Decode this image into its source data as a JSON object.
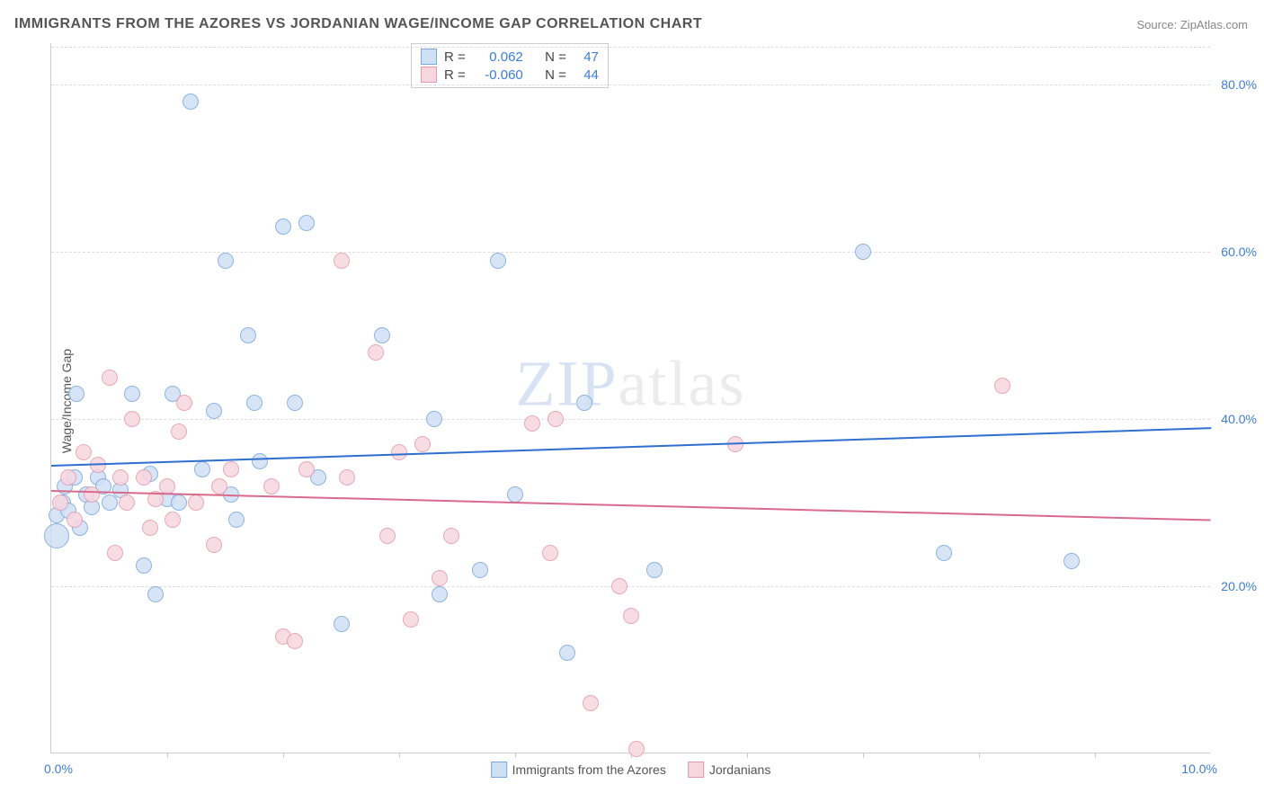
{
  "title": "IMMIGRANTS FROM THE AZORES VS JORDANIAN WAGE/INCOME GAP CORRELATION CHART",
  "source": "Source: ZipAtlas.com",
  "ylabel": "Wage/Income Gap",
  "watermark_a": "ZIP",
  "watermark_b": "atlas",
  "chart": {
    "type": "scatter",
    "xlim": [
      0,
      10
    ],
    "ylim": [
      0,
      85
    ],
    "x_ticks_minor": [
      1,
      2,
      3,
      4,
      5,
      6,
      7,
      8,
      9
    ],
    "x_tick_labels": {
      "left": "0.0%",
      "right": "10.0%"
    },
    "y_ticks": [
      20,
      40,
      60,
      80
    ],
    "y_tick_labels": [
      "20.0%",
      "40.0%",
      "60.0%",
      "80.0%"
    ],
    "background_color": "#ffffff",
    "grid_color": "#dddddd",
    "axis_color": "#cccccc",
    "tick_label_color": "#3b7dd8",
    "title_color": "#555555",
    "title_fontsize": 16,
    "label_fontsize": 14,
    "marker_radius": 9,
    "marker_stroke_width": 1,
    "trend_line_width": 2
  },
  "series": [
    {
      "name": "Immigrants from the Azores",
      "fill": "#cfe0f5",
      "stroke": "#7aa8dd",
      "trend_color": "#2f6fd0",
      "R": "0.062",
      "N": "47",
      "trend": {
        "x1": 0,
        "y1": 34.5,
        "x2": 10,
        "y2": 39.0
      },
      "points": [
        {
          "x": 0.05,
          "y": 28.5
        },
        {
          "x": 0.1,
          "y": 30
        },
        {
          "x": 0.12,
          "y": 32
        },
        {
          "x": 0.15,
          "y": 29
        },
        {
          "x": 0.2,
          "y": 33
        },
        {
          "x": 0.22,
          "y": 43
        },
        {
          "x": 0.25,
          "y": 27
        },
        {
          "x": 0.3,
          "y": 31
        },
        {
          "x": 0.35,
          "y": 29.5
        },
        {
          "x": 0.4,
          "y": 33
        },
        {
          "x": 0.45,
          "y": 32
        },
        {
          "x": 0.5,
          "y": 30
        },
        {
          "x": 0.6,
          "y": 31.5
        },
        {
          "x": 0.7,
          "y": 43
        },
        {
          "x": 0.8,
          "y": 22.5
        },
        {
          "x": 0.85,
          "y": 33.5
        },
        {
          "x": 0.9,
          "y": 19
        },
        {
          "x": 1.0,
          "y": 30.5
        },
        {
          "x": 1.05,
          "y": 43
        },
        {
          "x": 1.1,
          "y": 30
        },
        {
          "x": 1.2,
          "y": 78
        },
        {
          "x": 1.3,
          "y": 34
        },
        {
          "x": 1.4,
          "y": 41
        },
        {
          "x": 1.5,
          "y": 59
        },
        {
          "x": 1.55,
          "y": 31
        },
        {
          "x": 1.6,
          "y": 28
        },
        {
          "x": 1.7,
          "y": 50
        },
        {
          "x": 1.75,
          "y": 42
        },
        {
          "x": 1.8,
          "y": 35
        },
        {
          "x": 2.0,
          "y": 63
        },
        {
          "x": 2.1,
          "y": 42
        },
        {
          "x": 2.2,
          "y": 63.5
        },
        {
          "x": 2.3,
          "y": 33
        },
        {
          "x": 2.5,
          "y": 15.5
        },
        {
          "x": 2.85,
          "y": 50
        },
        {
          "x": 3.3,
          "y": 40
        },
        {
          "x": 3.35,
          "y": 19
        },
        {
          "x": 3.7,
          "y": 22
        },
        {
          "x": 3.85,
          "y": 59
        },
        {
          "x": 4.0,
          "y": 31
        },
        {
          "x": 4.45,
          "y": 12
        },
        {
          "x": 4.6,
          "y": 42
        },
        {
          "x": 5.2,
          "y": 22
        },
        {
          "x": 7.0,
          "y": 60
        },
        {
          "x": 7.7,
          "y": 24
        },
        {
          "x": 8.8,
          "y": 23
        },
        {
          "x": 0.05,
          "y": 26,
          "r": 14
        }
      ]
    },
    {
      "name": "Jordanians",
      "fill": "#f7d7df",
      "stroke": "#e59ab0",
      "trend_color": "#d96a8e",
      "R": "-0.060",
      "N": "44",
      "trend": {
        "x1": 0,
        "y1": 31.5,
        "x2": 10,
        "y2": 28.0
      },
      "points": [
        {
          "x": 0.08,
          "y": 30
        },
        {
          "x": 0.15,
          "y": 33
        },
        {
          "x": 0.2,
          "y": 28
        },
        {
          "x": 0.28,
          "y": 36
        },
        {
          "x": 0.35,
          "y": 31
        },
        {
          "x": 0.4,
          "y": 34.5
        },
        {
          "x": 0.5,
          "y": 45
        },
        {
          "x": 0.55,
          "y": 24
        },
        {
          "x": 0.6,
          "y": 33
        },
        {
          "x": 0.65,
          "y": 30
        },
        {
          "x": 0.7,
          "y": 40
        },
        {
          "x": 0.8,
          "y": 33
        },
        {
          "x": 0.85,
          "y": 27
        },
        {
          "x": 0.9,
          "y": 30.5
        },
        {
          "x": 1.0,
          "y": 32
        },
        {
          "x": 1.05,
          "y": 28
        },
        {
          "x": 1.1,
          "y": 38.5
        },
        {
          "x": 1.15,
          "y": 42
        },
        {
          "x": 1.25,
          "y": 30
        },
        {
          "x": 1.4,
          "y": 25
        },
        {
          "x": 1.45,
          "y": 32
        },
        {
          "x": 1.55,
          "y": 34
        },
        {
          "x": 1.9,
          "y": 32
        },
        {
          "x": 2.0,
          "y": 14
        },
        {
          "x": 2.1,
          "y": 13.5
        },
        {
          "x": 2.2,
          "y": 34
        },
        {
          "x": 2.5,
          "y": 59
        },
        {
          "x": 2.55,
          "y": 33
        },
        {
          "x": 2.8,
          "y": 48
        },
        {
          "x": 2.9,
          "y": 26
        },
        {
          "x": 3.0,
          "y": 36
        },
        {
          "x": 3.1,
          "y": 16
        },
        {
          "x": 3.2,
          "y": 37
        },
        {
          "x": 3.35,
          "y": 21
        },
        {
          "x": 3.45,
          "y": 26
        },
        {
          "x": 4.15,
          "y": 39.5
        },
        {
          "x": 4.3,
          "y": 24
        },
        {
          "x": 4.35,
          "y": 40
        },
        {
          "x": 4.65,
          "y": 6
        },
        {
          "x": 4.9,
          "y": 20
        },
        {
          "x": 5.0,
          "y": 16.5
        },
        {
          "x": 5.05,
          "y": 0.5
        },
        {
          "x": 5.9,
          "y": 37
        },
        {
          "x": 8.2,
          "y": 44
        }
      ]
    }
  ],
  "legend_stats_labels": {
    "R": "R =",
    "N": "N ="
  },
  "legend_bottom": [
    "Immigrants from the Azores",
    "Jordanians"
  ]
}
